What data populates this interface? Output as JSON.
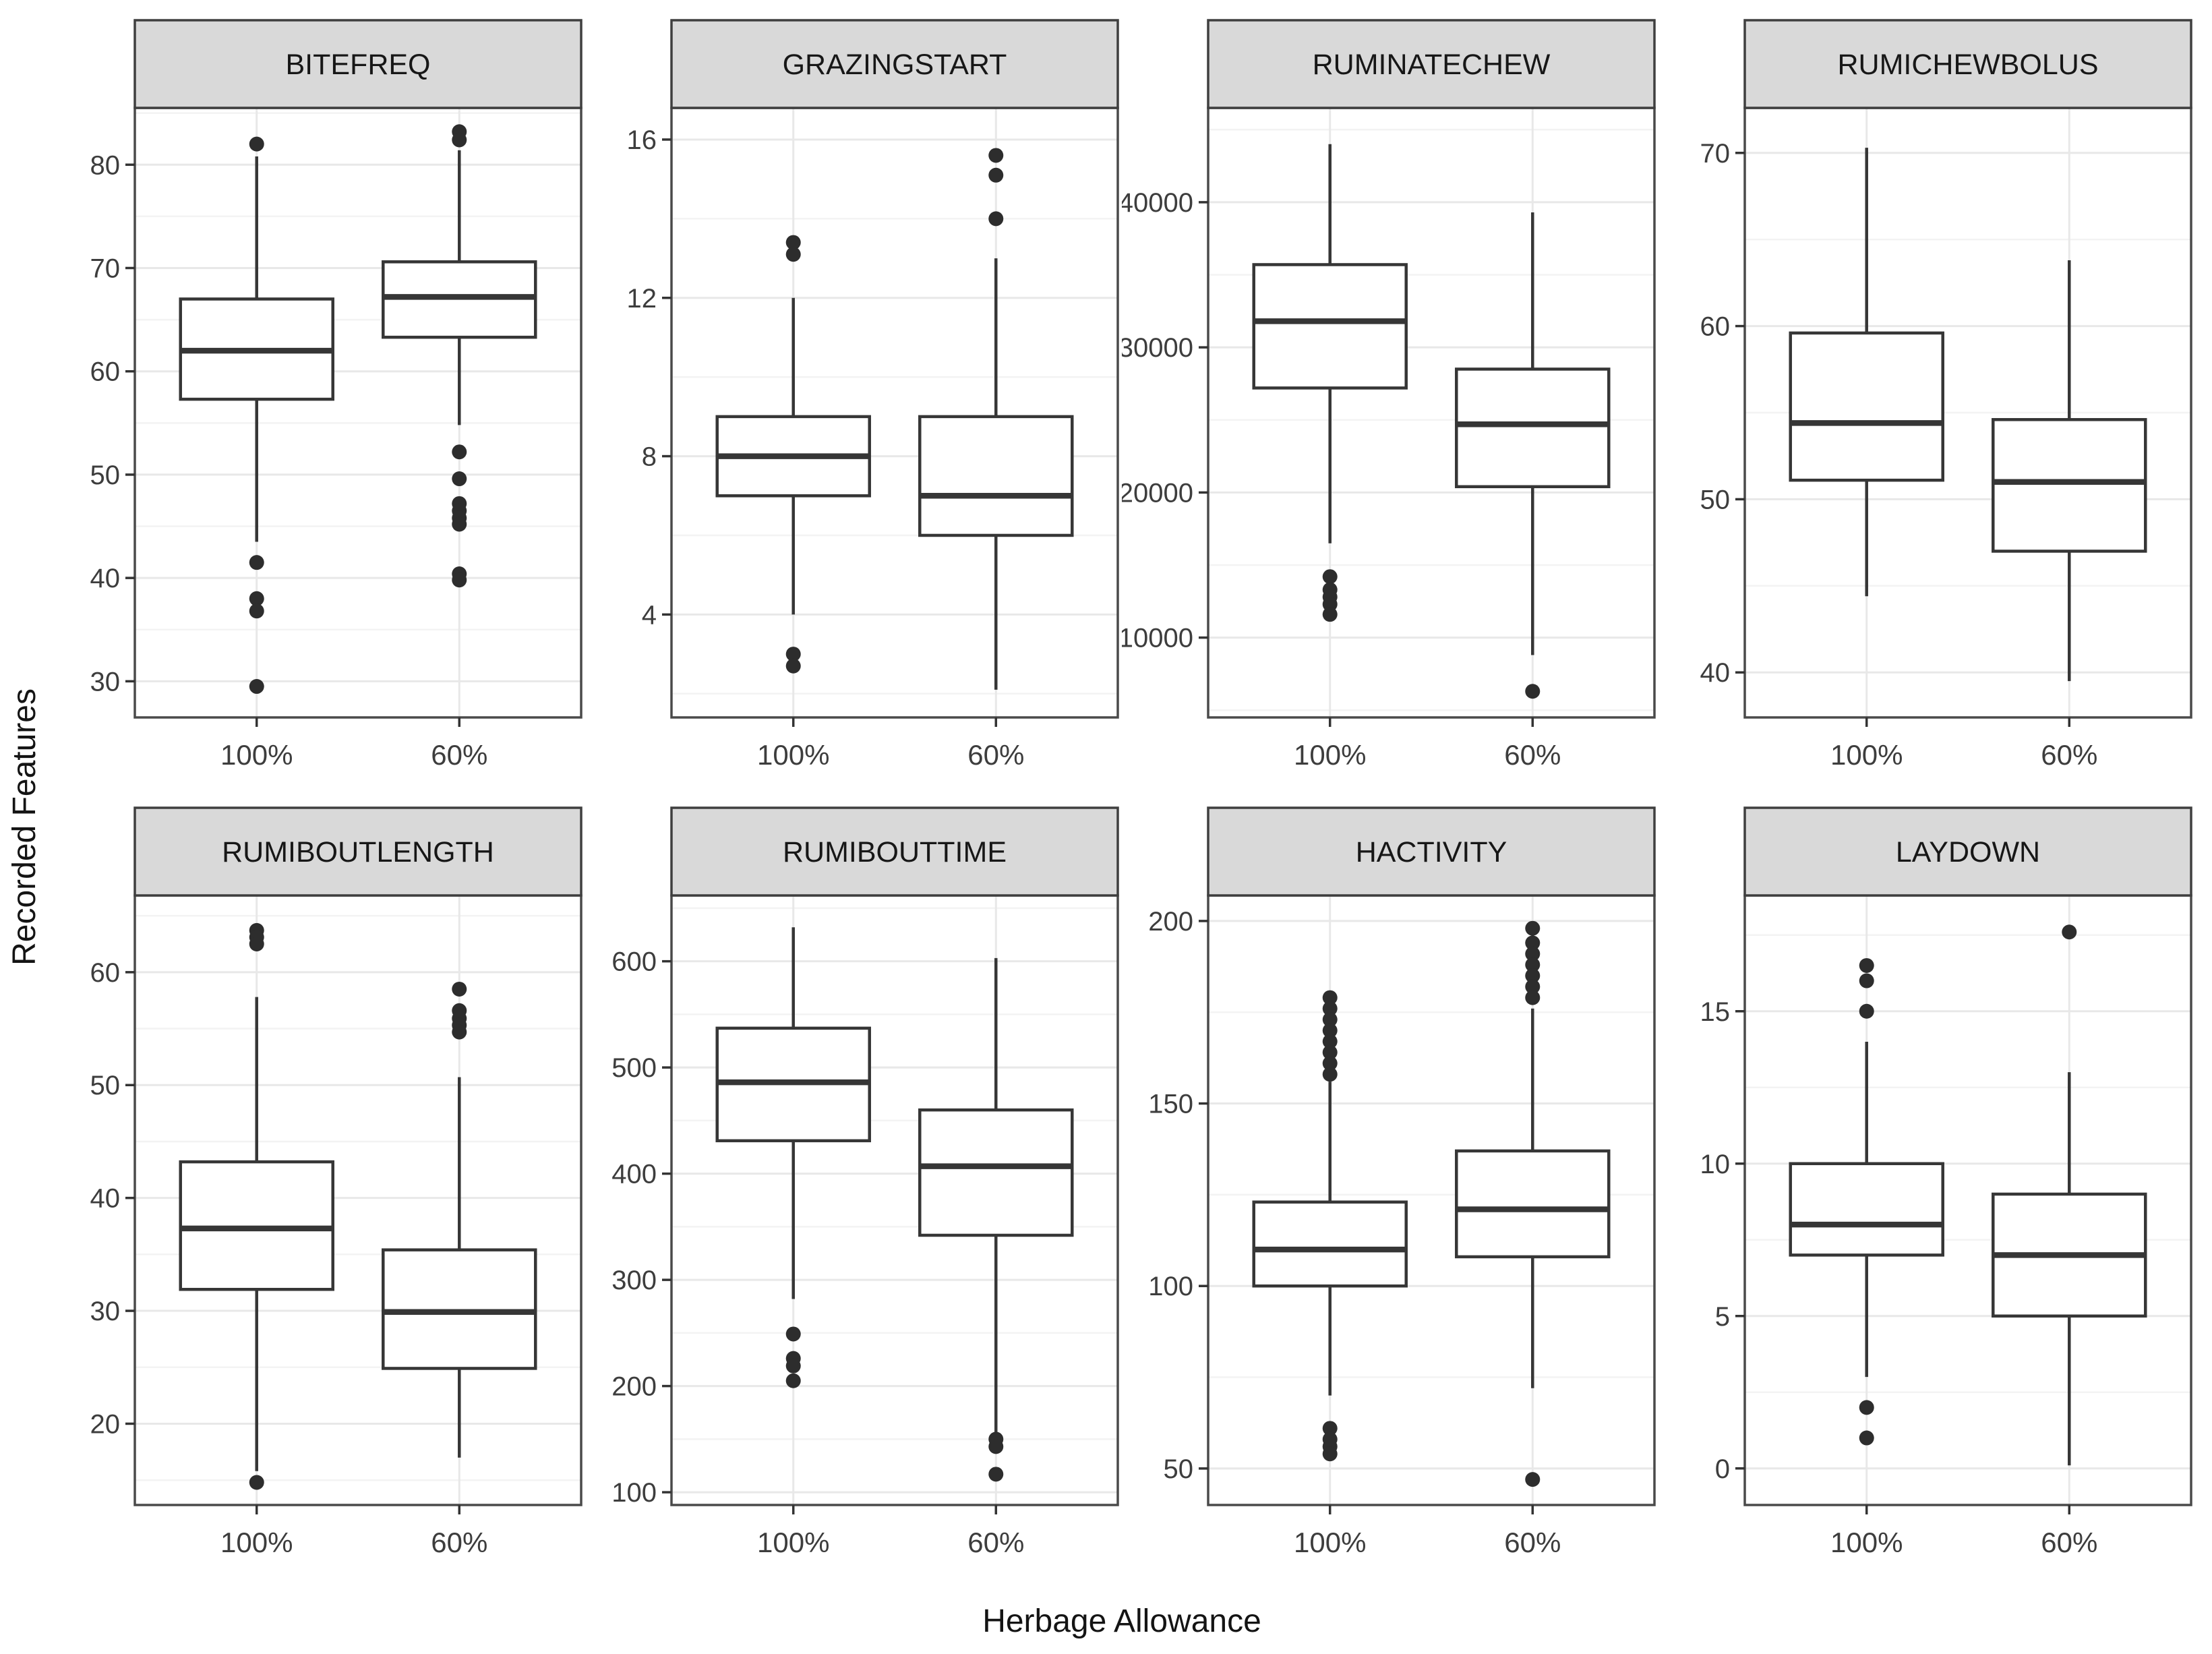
{
  "chart_data": {
    "type": "boxplot",
    "title": "",
    "xlabel": "Herbage Allowance",
    "ylabel": "Recorded Features",
    "categories": [
      "100%",
      "60%"
    ],
    "facet_layout": {
      "rows": 2,
      "cols": 4
    },
    "legend": "none",
    "grid": "major and minor horizontal gridlines, vertical gridline per category",
    "facets": [
      {
        "title": "BITEFREQ",
        "ylim": [
          26.5,
          85.5
        ],
        "yticks": [
          30,
          40,
          50,
          60,
          70,
          80
        ],
        "boxes": [
          {
            "category": "100%",
            "whisker_low": 43.5,
            "q1": 57.3,
            "median": 62.0,
            "q3": 67.0,
            "whisker_high": 80.8,
            "outliers": [
              82.0,
              41.5,
              38.0,
              36.8,
              29.5
            ]
          },
          {
            "category": "60%",
            "whisker_low": 54.8,
            "q1": 63.3,
            "median": 67.2,
            "q3": 70.6,
            "whisker_high": 81.4,
            "outliers": [
              83.2,
              82.4,
              52.2,
              49.6,
              47.2,
              46.5,
              45.8,
              45.2,
              40.4,
              39.8
            ]
          }
        ]
      },
      {
        "title": "GRAZINGSTART",
        "ylim": [
          1.4,
          16.8
        ],
        "yticks": [
          4,
          8,
          12,
          16
        ],
        "boxes": [
          {
            "category": "100%",
            "whisker_low": 4.0,
            "q1": 7.0,
            "median": 8.0,
            "q3": 9.0,
            "whisker_high": 12.0,
            "outliers": [
              13.4,
              13.1,
              3.0,
              2.7
            ]
          },
          {
            "category": "60%",
            "whisker_low": 2.1,
            "q1": 6.0,
            "median": 7.0,
            "q3": 9.0,
            "whisker_high": 13.0,
            "outliers": [
              15.6,
              15.1,
              14.0
            ]
          }
        ]
      },
      {
        "title": "RUMINATECHEW",
        "ylim": [
          4500,
          46500
        ],
        "yticks": [
          10000,
          20000,
          30000,
          40000
        ],
        "boxes": [
          {
            "category": "100%",
            "whisker_low": 16500,
            "q1": 27200,
            "median": 31800,
            "q3": 35700,
            "whisker_high": 44000,
            "outliers": [
              14200,
              13300,
              12800,
              12300,
              11600
            ]
          },
          {
            "category": "60%",
            "whisker_low": 8800,
            "q1": 20400,
            "median": 24700,
            "q3": 28500,
            "whisker_high": 39300,
            "outliers": [
              6300
            ]
          }
        ]
      },
      {
        "title": "RUMICHEWBOLUS",
        "ylim": [
          37.4,
          72.6
        ],
        "yticks": [
          40,
          50,
          60,
          70
        ],
        "boxes": [
          {
            "category": "100%",
            "whisker_low": 44.4,
            "q1": 51.1,
            "median": 54.4,
            "q3": 59.6,
            "whisker_high": 70.3,
            "outliers": []
          },
          {
            "category": "60%",
            "whisker_low": 39.5,
            "q1": 47.0,
            "median": 51.0,
            "q3": 54.6,
            "whisker_high": 63.8,
            "outliers": []
          }
        ]
      },
      {
        "title": "RUMIBOUTLENGTH",
        "ylim": [
          12.8,
          66.8
        ],
        "yticks": [
          20,
          30,
          40,
          50,
          60
        ],
        "boxes": [
          {
            "category": "100%",
            "whisker_low": 15.8,
            "q1": 31.9,
            "median": 37.3,
            "q3": 43.2,
            "whisker_high": 57.8,
            "outliers": [
              63.7,
              63.1,
              62.5,
              14.8
            ]
          },
          {
            "category": "60%",
            "whisker_low": 17.0,
            "q1": 24.9,
            "median": 29.9,
            "q3": 35.4,
            "whisker_high": 50.7,
            "outliers": [
              58.5,
              56.6,
              55.9,
              55.3,
              54.7
            ]
          }
        ]
      },
      {
        "title": "RUMIBOUTTIME",
        "ylim": [
          88,
          662
        ],
        "yticks": [
          100,
          200,
          300,
          400,
          500,
          600
        ],
        "boxes": [
          {
            "category": "100%",
            "whisker_low": 282,
            "q1": 431,
            "median": 486,
            "q3": 537,
            "whisker_high": 632,
            "outliers": [
              249,
              226,
              219,
              205
            ]
          },
          {
            "category": "60%",
            "whisker_low": 155,
            "q1": 342,
            "median": 407,
            "q3": 460,
            "whisker_high": 603,
            "outliers": [
              150,
              143,
              117
            ]
          }
        ]
      },
      {
        "title": "HACTIVITY",
        "ylim": [
          40,
          207
        ],
        "yticks": [
          50,
          100,
          150,
          200
        ],
        "boxes": [
          {
            "category": "100%",
            "whisker_low": 70,
            "q1": 100,
            "median": 110,
            "q3": 123,
            "whisker_high": 156,
            "outliers": [
              179,
              176,
              173,
              170,
              167,
              164,
              161,
              158,
              61,
              58,
              56,
              54
            ]
          },
          {
            "category": "60%",
            "whisker_low": 72,
            "q1": 108,
            "median": 121,
            "q3": 137,
            "whisker_high": 176,
            "outliers": [
              198,
              194,
              191,
              188,
              185,
              182,
              179,
              47
            ]
          }
        ]
      },
      {
        "title": "LAYDOWN",
        "ylim": [
          -1.2,
          18.8
        ],
        "yticks": [
          0,
          5,
          10,
          15
        ],
        "boxes": [
          {
            "category": "100%",
            "whisker_low": 3.0,
            "q1": 7.0,
            "median": 8.0,
            "q3": 10.0,
            "whisker_high": 14.0,
            "outliers": [
              16.5,
              16.0,
              15.0,
              2.0,
              1.0
            ]
          },
          {
            "category": "60%",
            "whisker_low": 0.1,
            "q1": 5.0,
            "median": 7.0,
            "q3": 9.0,
            "whisker_high": 13.0,
            "outliers": [
              17.6
            ]
          }
        ]
      }
    ],
    "style": {
      "strip_bg": "#d9d9d9",
      "strip_border": "#3f3f3f",
      "panel_bg": "#ffffff",
      "panel_border": "#4a4a4a",
      "grid_major": "#e8e8e8",
      "grid_minor": "#f3f3f3",
      "box_stroke": "#363636",
      "outlier_fill": "#2d2d2d",
      "tick_color": "#333333",
      "tick_text_color": "#3d3d3d",
      "strip_text_color": "#171717"
    }
  }
}
